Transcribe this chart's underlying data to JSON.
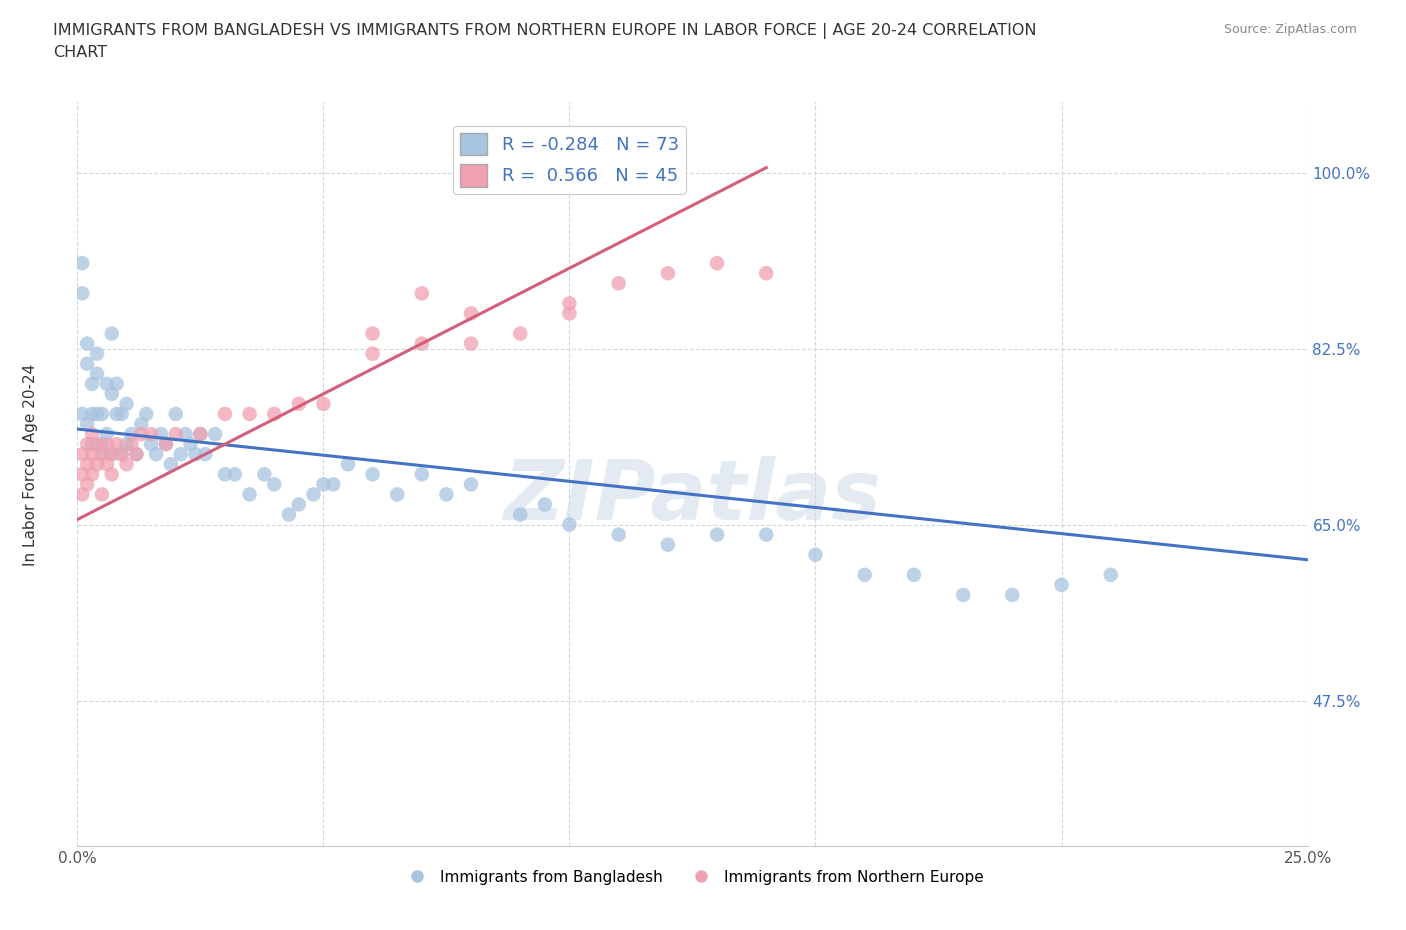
{
  "title": "IMMIGRANTS FROM BANGLADESH VS IMMIGRANTS FROM NORTHERN EUROPE IN LABOR FORCE | AGE 20-24 CORRELATION\nCHART",
  "source_text": "Source: ZipAtlas.com",
  "ylabel": "In Labor Force | Age 20-24",
  "xlim": [
    0.0,
    0.25
  ],
  "ylim": [
    0.33,
    1.07
  ],
  "xticks": [
    0.0,
    0.05,
    0.1,
    0.15,
    0.2,
    0.25
  ],
  "xtick_labels": [
    "0.0%",
    "",
    "",
    "",
    "",
    "25.0%"
  ],
  "yticks": [
    0.475,
    0.65,
    0.825,
    1.0
  ],
  "ytick_labels": [
    "47.5%",
    "65.0%",
    "82.5%",
    "100.0%"
  ],
  "R_bangladesh": -0.284,
  "N_bangladesh": 73,
  "R_northern_europe": 0.566,
  "N_northern_europe": 45,
  "blue_color": "#a8c4e0",
  "pink_color": "#f0a0b0",
  "blue_line_color": "#4472c4",
  "pink_line_color": "#d45f7a",
  "watermark_text": "ZIPatlas",
  "watermark_color": "#ccd9e8",
  "legend_label_bangladesh": "Immigrants from Bangladesh",
  "legend_label_northern_europe": "Immigrants from Northern Europe",
  "bangladesh_x": [
    0.001,
    0.001,
    0.001,
    0.002,
    0.002,
    0.002,
    0.003,
    0.003,
    0.003,
    0.004,
    0.004,
    0.004,
    0.005,
    0.005,
    0.005,
    0.006,
    0.006,
    0.007,
    0.007,
    0.007,
    0.008,
    0.008,
    0.009,
    0.009,
    0.01,
    0.01,
    0.011,
    0.012,
    0.013,
    0.014,
    0.015,
    0.016,
    0.017,
    0.018,
    0.019,
    0.02,
    0.021,
    0.022,
    0.023,
    0.024,
    0.025,
    0.026,
    0.028,
    0.03,
    0.032,
    0.035,
    0.038,
    0.04,
    0.043,
    0.048,
    0.052,
    0.06,
    0.065,
    0.05,
    0.055,
    0.045,
    0.07,
    0.075,
    0.08,
    0.09,
    0.095,
    0.1,
    0.11,
    0.12,
    0.13,
    0.14,
    0.15,
    0.16,
    0.17,
    0.18,
    0.19,
    0.2,
    0.21
  ],
  "bangladesh_y": [
    0.88,
    0.91,
    0.76,
    0.75,
    0.81,
    0.83,
    0.73,
    0.76,
    0.79,
    0.82,
    0.76,
    0.8,
    0.72,
    0.76,
    0.73,
    0.74,
    0.79,
    0.72,
    0.78,
    0.84,
    0.76,
    0.79,
    0.72,
    0.76,
    0.73,
    0.77,
    0.74,
    0.72,
    0.75,
    0.76,
    0.73,
    0.72,
    0.74,
    0.73,
    0.71,
    0.76,
    0.72,
    0.74,
    0.73,
    0.72,
    0.74,
    0.72,
    0.74,
    0.7,
    0.7,
    0.68,
    0.7,
    0.69,
    0.66,
    0.68,
    0.69,
    0.7,
    0.68,
    0.69,
    0.71,
    0.67,
    0.7,
    0.68,
    0.69,
    0.66,
    0.67,
    0.65,
    0.64,
    0.63,
    0.64,
    0.64,
    0.62,
    0.6,
    0.6,
    0.58,
    0.58,
    0.59,
    0.6
  ],
  "northern_europe_x": [
    0.001,
    0.001,
    0.001,
    0.002,
    0.002,
    0.002,
    0.003,
    0.003,
    0.003,
    0.004,
    0.004,
    0.005,
    0.005,
    0.006,
    0.006,
    0.007,
    0.007,
    0.008,
    0.009,
    0.01,
    0.011,
    0.012,
    0.013,
    0.015,
    0.018,
    0.02,
    0.025,
    0.03,
    0.035,
    0.04,
    0.045,
    0.05,
    0.06,
    0.07,
    0.08,
    0.09,
    0.1,
    0.06,
    0.07,
    0.08,
    0.1,
    0.11,
    0.12,
    0.13,
    0.14
  ],
  "northern_europe_y": [
    0.72,
    0.7,
    0.68,
    0.71,
    0.73,
    0.69,
    0.72,
    0.7,
    0.74,
    0.71,
    0.73,
    0.72,
    0.68,
    0.71,
    0.73,
    0.72,
    0.7,
    0.73,
    0.72,
    0.71,
    0.73,
    0.72,
    0.74,
    0.74,
    0.73,
    0.74,
    0.74,
    0.76,
    0.76,
    0.76,
    0.77,
    0.77,
    0.82,
    0.83,
    0.83,
    0.84,
    0.87,
    0.84,
    0.88,
    0.86,
    0.86,
    0.89,
    0.9,
    0.91,
    0.9
  ],
  "blue_line_x0": 0.0,
  "blue_line_x1": 0.25,
  "blue_line_y0": 0.745,
  "blue_line_y1": 0.615,
  "pink_line_x0": 0.0,
  "pink_line_x1": 0.14,
  "pink_line_y0": 0.655,
  "pink_line_y1": 1.005
}
